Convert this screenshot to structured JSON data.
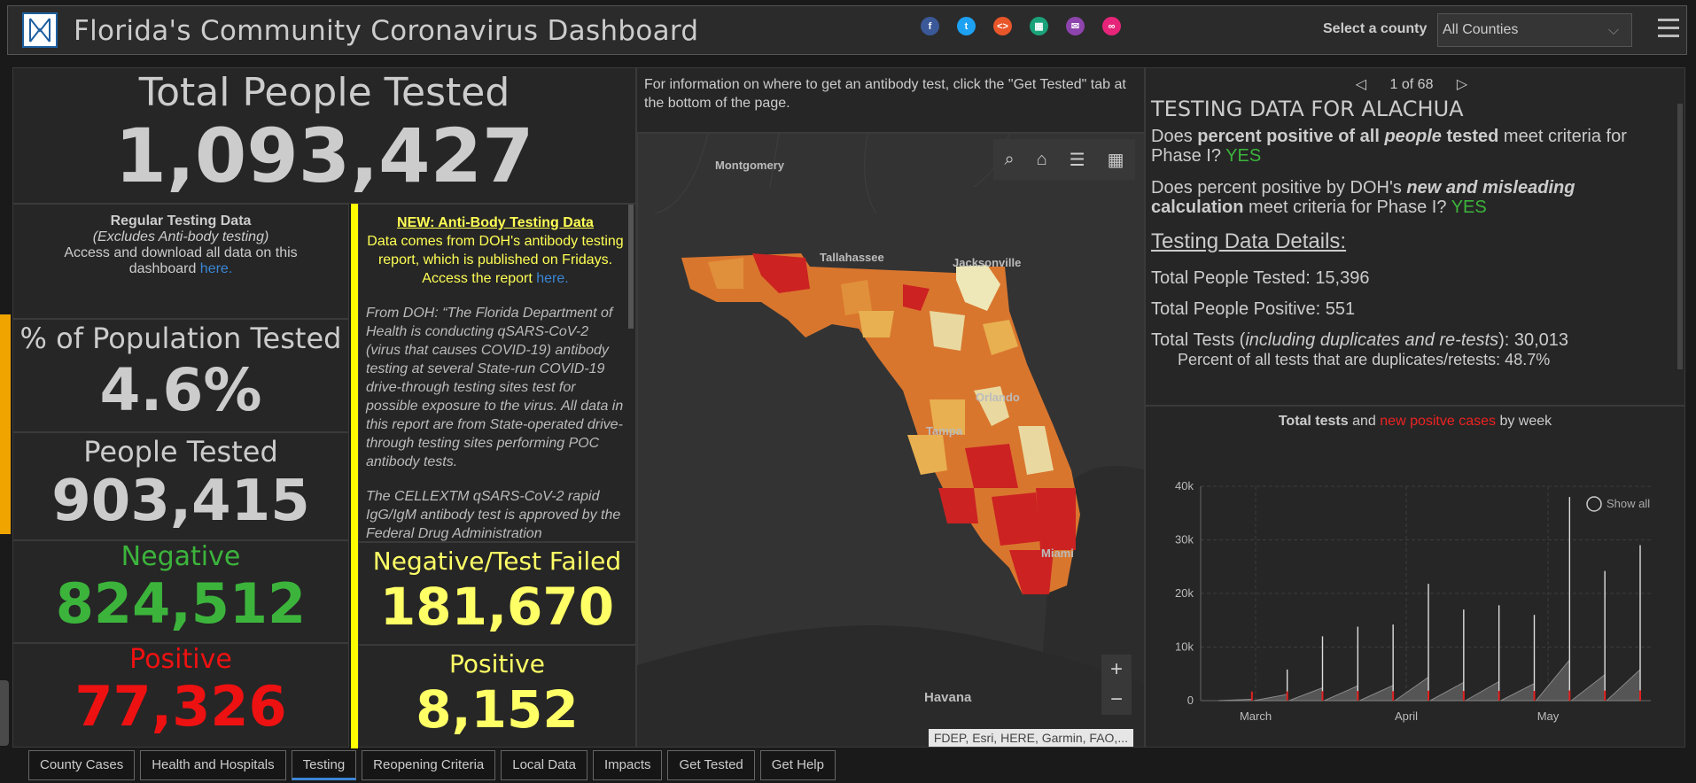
{
  "header": {
    "title": "Florida's Community Coronavirus Dashboard",
    "county_label": "Select a county",
    "county_value": "All Counties",
    "social_icons": [
      "facebook-icon",
      "twitter-icon",
      "embed-icon",
      "grid-icon",
      "email-icon",
      "link-icon"
    ]
  },
  "left": {
    "total_title": "Total People Tested",
    "total_value": "1,093,427",
    "regular": {
      "title": "Regular Testing Data",
      "subtitle": "(Excludes Anti-body testing)",
      "text": "Access and download all data on this dashboard",
      "link": "here."
    },
    "antibody": {
      "title": "NEW: Anti-Body Testing Data",
      "text": "Data comes from DOH's antibody testing report, which is published on Fridays. Access the report",
      "link": "here.",
      "body1": "From DOH: “The Florida Department of Health is conducting qSARS-CoV-2 (virus that causes COVID-19) antibody testing at several State-run COVID-19 drive-through testing sites test for possible exposure to the virus. All data in this report are from State-operated drive-through testing sites performing POC antibody tests.",
      "body2": "The CELLEXTM qSARS-CoV-2 rapid IgG/IgM antibody test is approved by the Federal Drug Administration"
    },
    "pct_title": "% of Population Tested",
    "pct_value": "4.6%",
    "people_title": "People Tested",
    "people_value": "903,415",
    "neg_title": "Negative",
    "neg_value": "824,512",
    "pos_title": "Positive",
    "pos_value": "77,326",
    "ab_neg_title": "Negative/Test Failed",
    "ab_neg_value": "181,670",
    "ab_pos_title": "Positive",
    "ab_pos_value": "8,152"
  },
  "map": {
    "info": "For information on where to get an antibody test, click the \"Get Tested\" tab at the bottom of the page.",
    "cities": {
      "montgomery": "Montgomery",
      "tallahassee": "Tallahassee",
      "jacksonville": "Jacksonville",
      "orlando": "Orlando",
      "tampa": "Tampa",
      "miami": "Miami",
      "havana": "Havana"
    },
    "attribution": "FDEP, Esri, HERE, Garmin, FAO,...",
    "zoom_in": "+",
    "zoom_out": "−"
  },
  "info": {
    "pager": "1 of 68",
    "title": "TESTING DATA FOR ALACHUA",
    "q1_pre": "Does",
    "q1_bold1": "percent positive of all",
    "q1_italic": "people",
    "q1_bold2": "tested",
    "q1_post": "meet criteria for Phase I?",
    "q1_answer": "YES",
    "q2_pre": "Does percent positive by DOH's",
    "q2_italic": "new and misleading",
    "q2_bold": "calculation",
    "q2_post": "meet criteria for Phase I?",
    "q2_answer": "YES",
    "details_title": "Testing Data Details:",
    "people_tested": "Total People Tested: 15,396",
    "people_positive": "Total People Positive: 551",
    "total_tests_pre": "Total Tests (",
    "total_tests_italic": "including duplicates and re-tests",
    "total_tests_post": "): 30,013",
    "dup_pct": "Percent of all tests that are duplicates/retests: 48.7%"
  },
  "chart_title": {
    "part1": "Total tests",
    "part2": "and",
    "part3": "new positve cases",
    "part4": "by week",
    "show_all": "Show all"
  },
  "chart_data": {
    "type": "area",
    "x_ticks": [
      "March",
      "April",
      "May"
    ],
    "y_ticks": [
      "0",
      "10k",
      "20k",
      "30k",
      "40k"
    ],
    "ylim": [
      0,
      40000
    ],
    "series": [
      {
        "name": "Total tests",
        "color": "#cccccc",
        "weekly_peaks": [
          1300,
          5800,
          12000,
          13800,
          14200,
          21800,
          17000,
          17800,
          16000,
          38000,
          24200,
          29000
        ]
      },
      {
        "name": "new positve cases",
        "color": "#e02020",
        "weekly_peaks": [
          50,
          80,
          120,
          150,
          120,
          200,
          150,
          180,
          160,
          250,
          220,
          260
        ]
      }
    ],
    "grid": true
  },
  "tabs": [
    {
      "label": "County Cases"
    },
    {
      "label": "Health and Hospitals"
    },
    {
      "label": "Testing"
    },
    {
      "label": "Reopening Criteria"
    },
    {
      "label": "Local Data"
    },
    {
      "label": "Impacts"
    },
    {
      "label": "Get Tested"
    },
    {
      "label": "Get Help"
    }
  ]
}
